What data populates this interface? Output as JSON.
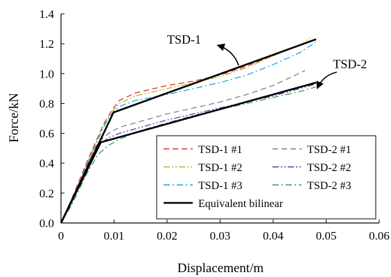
{
  "chart_data": {
    "type": "line",
    "xlabel": "Displacement/m",
    "ylabel": "Force/kN",
    "xlim": [
      0,
      0.06
    ],
    "ylim": [
      0,
      1.4
    ],
    "xticks": [
      0,
      0.01,
      0.02,
      0.03,
      0.04,
      0.05,
      0.06
    ],
    "yticks": [
      0.0,
      0.2,
      0.4,
      0.6,
      0.8,
      1.0,
      1.2,
      1.4
    ],
    "xtick_labels": [
      "0",
      "0.01",
      "0.02",
      "0.03",
      "0.04",
      "0.05",
      "0.06"
    ],
    "ytick_labels": [
      "0.0",
      "0.2",
      "0.4",
      "0.6",
      "0.8",
      "1.0",
      "1.2",
      "1.4"
    ],
    "grid": false,
    "legend_position": "bottom-right",
    "series": [
      {
        "name": "TSD-1 #1",
        "color": "#e8282a",
        "dash": "dashed",
        "x": [
          0,
          0.002,
          0.005,
          0.008,
          0.0095,
          0.011,
          0.014,
          0.02,
          0.025,
          0.03,
          0.035,
          0.04,
          0.045,
          0.047
        ],
        "y": [
          0,
          0.16,
          0.42,
          0.66,
          0.75,
          0.82,
          0.87,
          0.92,
          0.95,
          0.99,
          1.05,
          1.12,
          1.19,
          1.22
        ]
      },
      {
        "name": "TSD-1 #2",
        "color": "#b5b528",
        "dash": "dashdotdot",
        "x": [
          0,
          0.002,
          0.005,
          0.008,
          0.0095,
          0.011,
          0.014,
          0.02,
          0.025,
          0.03,
          0.035,
          0.04,
          0.045,
          0.047
        ],
        "y": [
          0,
          0.15,
          0.41,
          0.65,
          0.74,
          0.8,
          0.85,
          0.9,
          0.94,
          0.98,
          1.04,
          1.12,
          1.19,
          1.24
        ]
      },
      {
        "name": "TSD-1 #3",
        "color": "#1aa3e0",
        "dash": "dashdot",
        "x": [
          0,
          0.002,
          0.005,
          0.008,
          0.0095,
          0.011,
          0.014,
          0.02,
          0.025,
          0.03,
          0.035,
          0.04,
          0.045,
          0.048
        ],
        "y": [
          0,
          0.15,
          0.4,
          0.64,
          0.73,
          0.78,
          0.82,
          0.86,
          0.9,
          0.94,
          0.99,
          1.06,
          1.14,
          1.21
        ]
      },
      {
        "name": "TSD-2 #1",
        "color": "#808080",
        "dash": "dashed",
        "x": [
          0,
          0.002,
          0.005,
          0.007,
          0.009,
          0.011,
          0.015,
          0.02,
          0.025,
          0.03,
          0.035,
          0.04,
          0.046
        ],
        "y": [
          0,
          0.15,
          0.4,
          0.54,
          0.6,
          0.64,
          0.68,
          0.73,
          0.77,
          0.81,
          0.86,
          0.92,
          1.02
        ]
      },
      {
        "name": "TSD-2 #2",
        "color": "#6a2fb5",
        "dash": "dashdotdot",
        "x": [
          0,
          0.002,
          0.005,
          0.007,
          0.009,
          0.011,
          0.015,
          0.02,
          0.025,
          0.03,
          0.035,
          0.04,
          0.045,
          0.048
        ],
        "y": [
          0,
          0.14,
          0.39,
          0.52,
          0.57,
          0.6,
          0.64,
          0.69,
          0.73,
          0.77,
          0.81,
          0.85,
          0.9,
          0.93
        ]
      },
      {
        "name": "TSD-2 #3",
        "color": "#2aa05a",
        "dash": "dashdot",
        "x": [
          0,
          0.002,
          0.005,
          0.007,
          0.009,
          0.011,
          0.015,
          0.02,
          0.025,
          0.03,
          0.035,
          0.04,
          0.045,
          0.048
        ],
        "y": [
          0,
          0.12,
          0.34,
          0.46,
          0.52,
          0.56,
          0.62,
          0.67,
          0.72,
          0.76,
          0.8,
          0.84,
          0.88,
          0.91
        ]
      },
      {
        "name": "Equivalent bilinear",
        "color": "#000000",
        "dash": "solid",
        "width": 2.6,
        "x": [
          0,
          0.0099,
          0.0481
        ],
        "y": [
          0,
          0.74,
          1.23
        ]
      },
      {
        "name": "",
        "color": "#000000",
        "dash": "solid",
        "width": 2.6,
        "legend": false,
        "x": [
          0,
          0.0075,
          0.0481
        ],
        "y": [
          0,
          0.54,
          0.94
        ]
      }
    ],
    "annotations": [
      {
        "text": "TSD-1",
        "x": 0.0232,
        "y": 1.2,
        "arrow_from": [
          0.0335,
          1.055
        ],
        "arrow_to": [
          0.0295,
          1.19
        ]
      },
      {
        "text": "TSD-2",
        "x": 0.0545,
        "y": 1.035,
        "arrow_from": [
          0.052,
          1.01
        ],
        "arrow_to": [
          0.0483,
          0.9
        ]
      }
    ]
  }
}
